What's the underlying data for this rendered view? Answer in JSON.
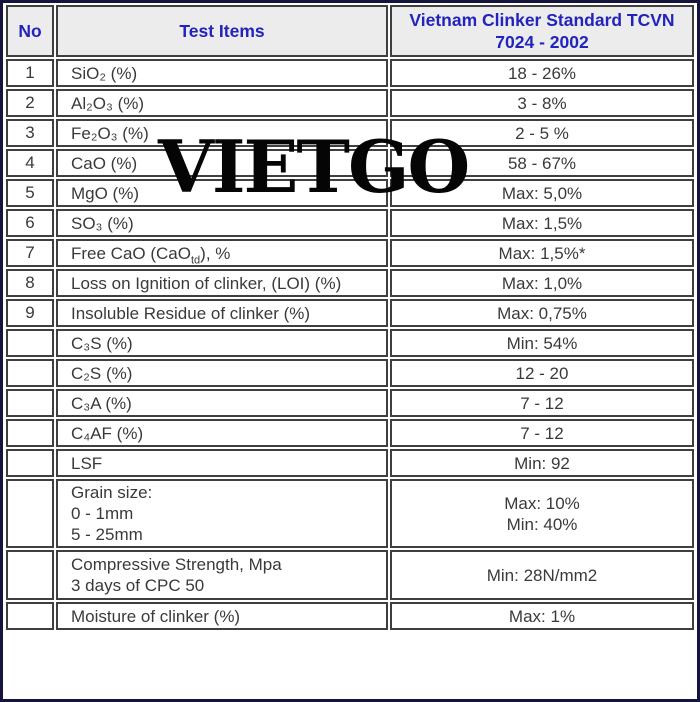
{
  "watermark": {
    "text": "VIETGO",
    "color": "#050505"
  },
  "colors": {
    "header_text": "#2323bd",
    "header_bg": "#ececec",
    "body_text": "#3a3a3a",
    "cell_border": "#3f3f3f",
    "outer_frame": "#14143c",
    "cell_bg": "#ffffff"
  },
  "table": {
    "header": {
      "no": "No",
      "items": "Test Items",
      "standard": "Vietnam Clinker Standard TCVN 7024 - 2002"
    },
    "rows": [
      {
        "no": "1",
        "item": "SiO₂ (%)",
        "value": "18 - 26%"
      },
      {
        "no": "2",
        "item": "Al₂O₃ (%)",
        "value": "3 - 8%"
      },
      {
        "no": "3",
        "item": "Fe₂O₃ (%)",
        "value": "2 - 5 %"
      },
      {
        "no": "4",
        "item": "CaO (%)",
        "value": "58 - 67%"
      },
      {
        "no": "5",
        "item": "MgO (%)",
        "value": "Max: 5,0%"
      },
      {
        "no": "6",
        "item": "SO₃ (%)",
        "value": "Max: 1,5%"
      },
      {
        "no": "7",
        "item_pre": "Free CaO (CaO",
        "item_sub": "td",
        "item_post": "), %",
        "value": "Max: 1,5%*"
      },
      {
        "no": "8",
        "item": "Loss on Ignition of clinker, (LOI) (%)",
        "value": "Max: 1,0%"
      },
      {
        "no": "9",
        "item": "Insoluble Residue of clinker (%)",
        "value": "Max: 0,75%"
      },
      {
        "no": "",
        "item": "C₃S (%)",
        "value": "Min: 54%"
      },
      {
        "no": "",
        "item": "C₂S (%)",
        "value": "12 - 20"
      },
      {
        "no": "",
        "item": "C₃A (%)",
        "value": "7 - 12"
      },
      {
        "no": "",
        "item": "C₄AF (%)",
        "value": "7 - 12"
      },
      {
        "no": "",
        "item": "LSF",
        "value": "Min: 92"
      },
      {
        "no": "",
        "item_lines": [
          "Grain size:",
          "0 - 1mm",
          "5 - 25mm"
        ],
        "value_lines": [
          "Max: 10%",
          "Min: 40%"
        ]
      },
      {
        "no": "",
        "item_lines": [
          "Compressive Strength, Mpa",
          "3 days of CPC 50"
        ],
        "value": "Min: 28N/mm2"
      },
      {
        "no": "",
        "item": "Moisture of clinker (%)",
        "value": "Max: 1%"
      }
    ]
  }
}
